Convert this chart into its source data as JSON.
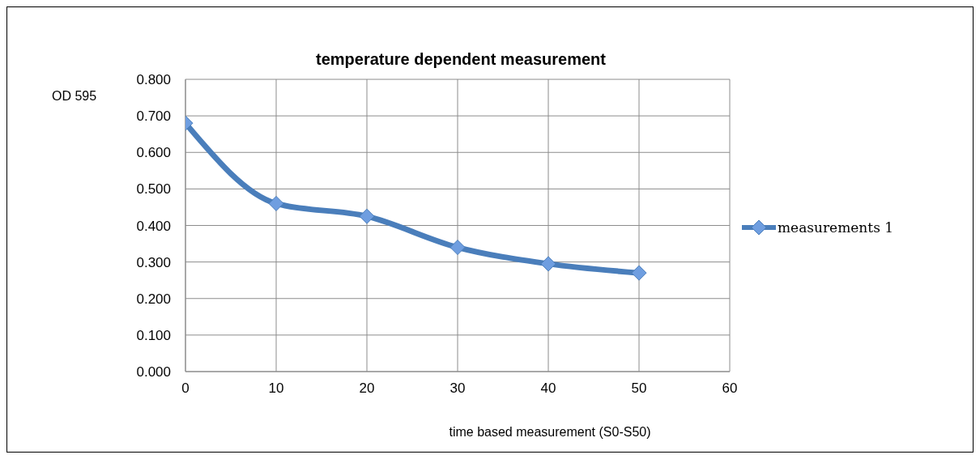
{
  "chart_data": {
    "type": "line",
    "title": "temperature dependent measurement",
    "xlabel": "time based measurement (S0-S50)",
    "ylabel": "OD 595",
    "x": [
      0,
      10,
      20,
      30,
      40,
      50
    ],
    "series": [
      {
        "name": "measurements 1",
        "color": "#4a7ebb",
        "values": [
          0.68,
          0.46,
          0.425,
          0.34,
          0.295,
          0.27
        ]
      }
    ],
    "xlim": [
      0,
      60
    ],
    "xticks": [
      0,
      10,
      20,
      30,
      40,
      50,
      60
    ],
    "ylim": [
      0,
      0.8
    ],
    "yticks": [
      {
        "value": 0,
        "label": "0.000"
      },
      {
        "value": 0.1,
        "label": "0.100"
      },
      {
        "value": 0.2,
        "label": "0.200"
      },
      {
        "value": 0.3,
        "label": "0.300"
      },
      {
        "value": 0.4,
        "label": "0.400"
      },
      {
        "value": 0.5,
        "label": "0.500"
      },
      {
        "value": 0.6,
        "label": "0.600"
      },
      {
        "value": 0.7,
        "label": "0.700"
      },
      {
        "value": 0.8,
        "label": "0.800"
      }
    ],
    "grid": true,
    "legend": "right",
    "marker": "diamond",
    "line_style": "solid"
  }
}
